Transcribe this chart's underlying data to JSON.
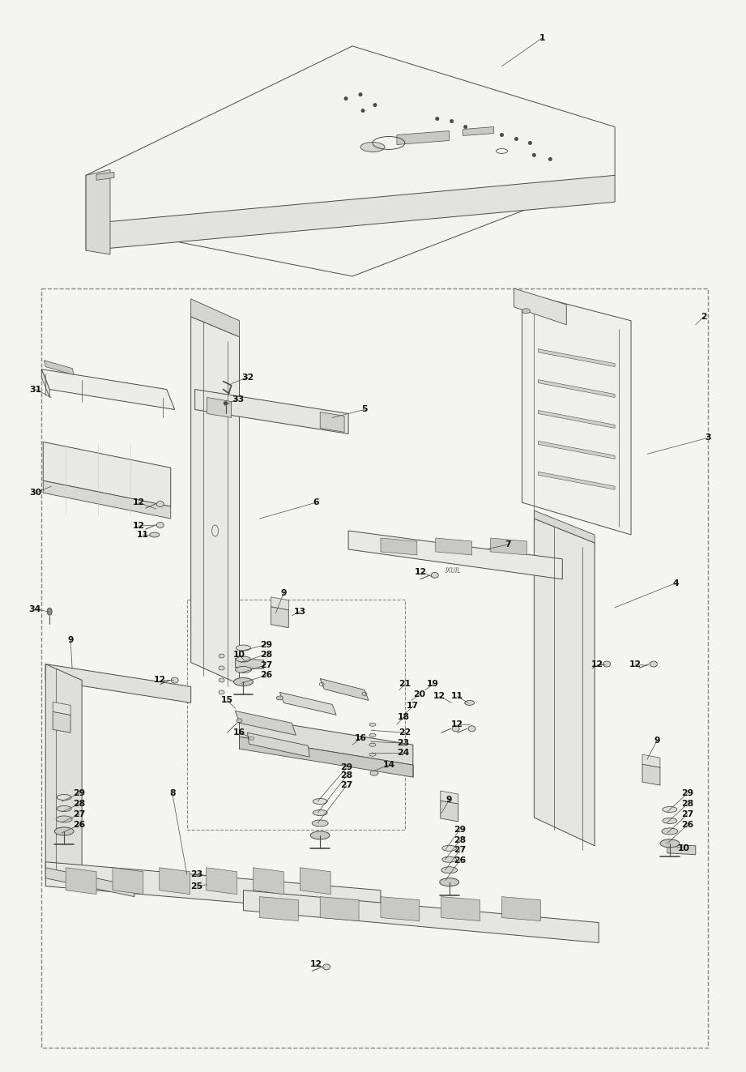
{
  "bg_color": "#f4f4f0",
  "line_color": "#4a4a4a",
  "dash_color": "#888888",
  "label_color": "#111111",
  "fig_width": 9.21,
  "fig_height": 13.23,
  "dpi": 100
}
